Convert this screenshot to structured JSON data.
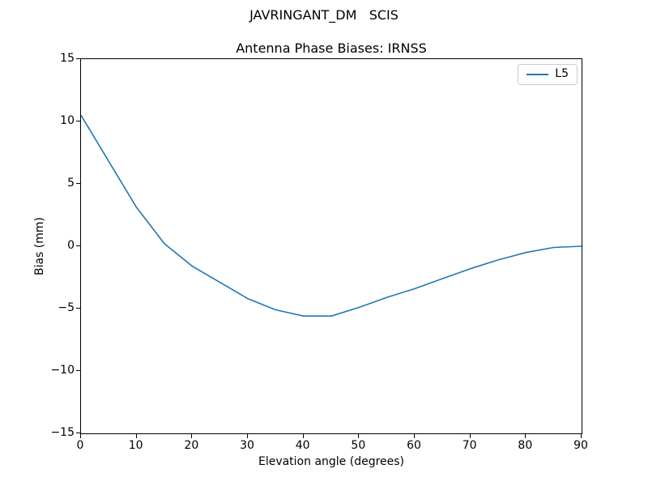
{
  "figure": {
    "suptitle": "JAVRINGANT_DM   SCIS",
    "title": "Antenna Phase Biases: IRNSS"
  },
  "axes": {
    "xlabel": "Elevation angle (degrees)",
    "ylabel": "Bias (mm)"
  },
  "legend": {
    "position": "upper right",
    "entries": [
      {
        "label": "L5",
        "color": "#1f77b4"
      }
    ]
  },
  "chart_data": {
    "type": "line",
    "suptitle": "JAVRINGANT_DM   SCIS",
    "title": "Antenna Phase Biases: IRNSS",
    "xlabel": "Elevation angle (degrees)",
    "ylabel": "Bias (mm)",
    "xlim": [
      0,
      90
    ],
    "ylim": [
      -15,
      15
    ],
    "x_ticks": [
      0,
      10,
      20,
      30,
      40,
      50,
      60,
      70,
      80,
      90
    ],
    "y_ticks": [
      15,
      10,
      5,
      0,
      -5,
      -10,
      -15
    ],
    "grid": false,
    "legend_position": "upper right",
    "background_color": "#ffffff",
    "spine_color": "#000000",
    "series": [
      {
        "name": "L5",
        "color": "#1f77b4",
        "x": [
          0,
          5,
          10,
          15,
          20,
          25,
          30,
          35,
          40,
          45,
          50,
          55,
          60,
          65,
          70,
          75,
          80,
          85,
          90
        ],
        "y": [
          10.5,
          6.8,
          3.1,
          0.2,
          -1.6,
          -2.9,
          -4.2,
          -5.1,
          -5.6,
          -5.6,
          -4.9,
          -4.1,
          -3.4,
          -2.6,
          -1.8,
          -1.1,
          -0.5,
          -0.1,
          0.0
        ]
      }
    ]
  }
}
